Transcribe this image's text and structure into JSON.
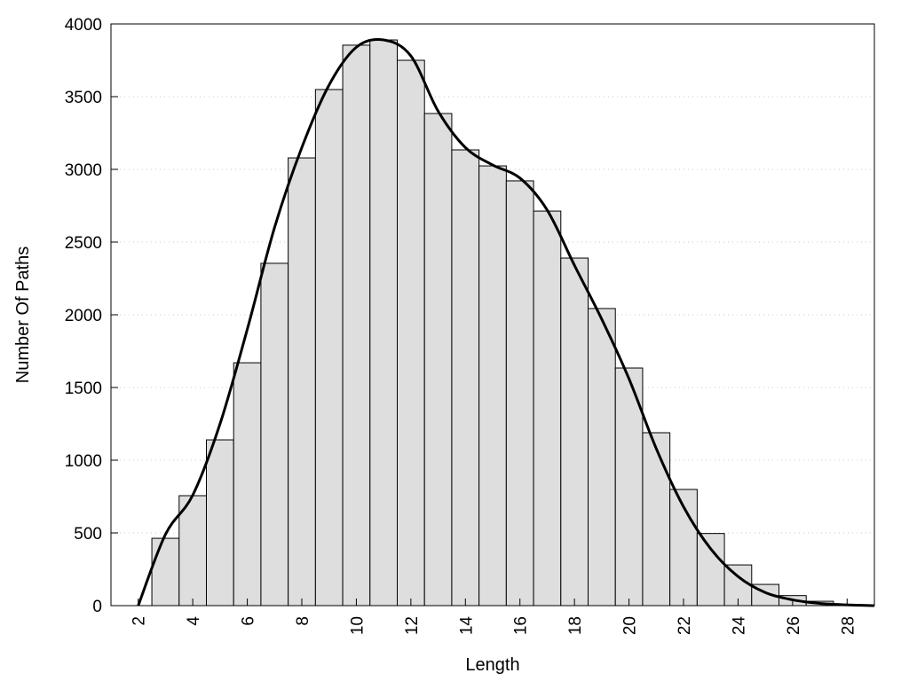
{
  "chart_data": {
    "type": "bar",
    "title": "",
    "xlabel": "Length",
    "ylabel": "Number Of Paths",
    "xlim": [
      1,
      29
    ],
    "ylim": [
      0,
      4000
    ],
    "grid": "horizontal dotted",
    "bar_color": "#dedede",
    "bar_edge_color": "#000000",
    "line_color": "#000000",
    "x_ticks": [
      "2",
      "4",
      "6",
      "8",
      "10",
      "12",
      "14",
      "16",
      "18",
      "20",
      "22",
      "24",
      "26",
      "28"
    ],
    "y_ticks": [
      "0",
      "500",
      "1000",
      "1500",
      "2000",
      "2500",
      "3000",
      "3500",
      "4000"
    ],
    "bars": {
      "x": [
        3,
        4,
        5,
        6,
        7,
        8,
        9,
        10,
        11,
        12,
        13,
        14,
        15,
        16,
        17,
        18,
        19,
        20,
        21,
        22,
        23,
        24,
        25,
        26,
        27,
        28
      ],
      "values": [
        463,
        756,
        1140,
        1670,
        2354,
        3079,
        3549,
        3854,
        3890,
        3750,
        3384,
        3134,
        3024,
        2921,
        2713,
        2390,
        2043,
        1634,
        1189,
        799,
        496,
        280,
        146,
        69,
        30,
        5
      ]
    },
    "smooth_curve": {
      "x": [
        2,
        3,
        4,
        5,
        6,
        7,
        8,
        9,
        10,
        11,
        12,
        13,
        14,
        15,
        16,
        17,
        18,
        19,
        20,
        21,
        22,
        23,
        24,
        25,
        26,
        27,
        28,
        29
      ],
      "values": [
        0,
        490,
        760,
        1250,
        1900,
        2600,
        3150,
        3580,
        3840,
        3890,
        3780,
        3400,
        3150,
        3030,
        2940,
        2720,
        2340,
        1970,
        1560,
        1080,
        680,
        390,
        200,
        90,
        40,
        15,
        5,
        0
      ]
    }
  }
}
